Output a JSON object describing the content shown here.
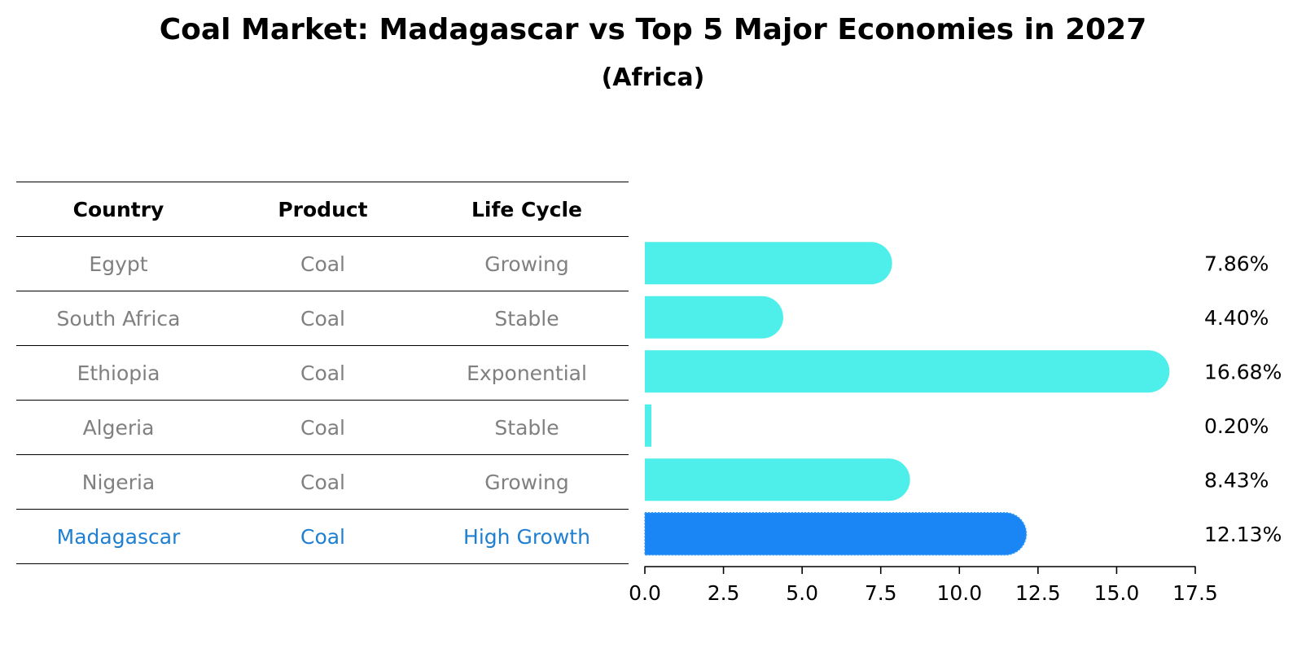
{
  "title": "Coal Market: Madagascar vs Top 5 Major Economies in 2027",
  "subtitle": "(Africa)",
  "table": {
    "headers": [
      "Country",
      "Product",
      "Life Cycle"
    ],
    "rows": [
      {
        "country": "Egypt",
        "product": "Coal",
        "life_cycle": "Growing"
      },
      {
        "country": "South Africa",
        "product": "Coal",
        "life_cycle": "Stable"
      },
      {
        "country": "Ethiopia",
        "product": "Coal",
        "life_cycle": "Exponential"
      },
      {
        "country": "Algeria",
        "product": "Coal",
        "life_cycle": "Stable"
      },
      {
        "country": "Nigeria",
        "product": "Coal",
        "life_cycle": "Growing"
      },
      {
        "country": "Madagascar",
        "product": "Coal",
        "life_cycle": "High Growth"
      }
    ],
    "highlight_country": "Madagascar"
  },
  "colors": {
    "bar": "#4eeeea",
    "highlight_bar": "#1a86f5",
    "highlight_text": "#1f7fd0",
    "row_text": "#808080"
  },
  "chart_data": {
    "type": "bar",
    "orientation": "horizontal",
    "title": "Coal Market: Madagascar vs Top 5 Major Economies in 2027",
    "subtitle": "(Africa)",
    "categories": [
      "Egypt",
      "South Africa",
      "Ethiopia",
      "Algeria",
      "Nigeria",
      "Madagascar"
    ],
    "values": [
      7.86,
      4.4,
      16.68,
      0.2,
      8.43,
      12.13
    ],
    "value_labels": [
      "7.86%",
      "4.40%",
      "16.68%",
      "0.20%",
      "8.43%",
      "12.13%"
    ],
    "highlight": "Madagascar",
    "xlim": [
      0,
      17.5
    ],
    "xticks": [
      0.0,
      2.5,
      5.0,
      7.5,
      10.0,
      12.5,
      15.0,
      17.5
    ],
    "xtick_labels": [
      "0.0",
      "2.5",
      "5.0",
      "7.5",
      "10.0",
      "12.5",
      "15.0",
      "17.5"
    ],
    "xlabel": "",
    "ylabel": "",
    "grid": false
  }
}
